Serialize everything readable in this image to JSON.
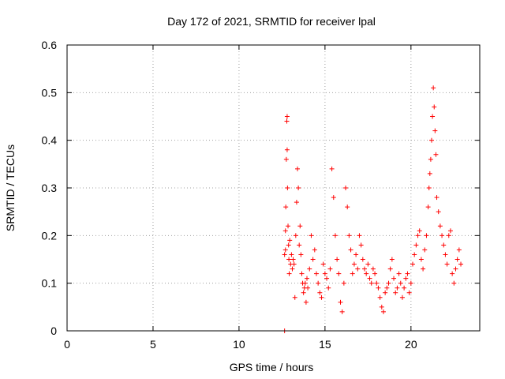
{
  "chart_data": {
    "type": "scatter",
    "title": "Day 172 of 2021, SRMTID for receiver lpal",
    "xlabel": "GPS time / hours",
    "ylabel": "SRMTID / TECUs",
    "xlim": [
      0,
      24
    ],
    "ylim": [
      0,
      0.6
    ],
    "xticks": [
      0,
      5,
      10,
      15,
      20
    ],
    "xtick_labels": [
      "0",
      "5",
      "10",
      "15",
      "20"
    ],
    "yticks": [
      0,
      0.1,
      0.2,
      0.3,
      0.4,
      0.5,
      0.6
    ],
    "ytick_labels": [
      "0",
      "0.1",
      "0.2",
      "0.3",
      "0.4",
      "0.5",
      "0.6"
    ],
    "grid": true,
    "marker": "+",
    "color": "#ff0000",
    "x_range_of_data": [
      12.6,
      22.9
    ],
    "series": [
      {
        "name": "SRMTID",
        "x": [
          12.65,
          12.65,
          12.7,
          12.7,
          12.72,
          12.75,
          12.78,
          12.8,
          12.8,
          12.82,
          12.85,
          12.88,
          12.9,
          12.92,
          12.95,
          13.0,
          13.05,
          13.1,
          13.15,
          13.2,
          13.25,
          13.3,
          13.35,
          13.4,
          13.45,
          13.5,
          13.55,
          13.6,
          13.65,
          13.7,
          13.75,
          13.8,
          13.85,
          13.9,
          13.95,
          14.0,
          14.1,
          14.2,
          14.3,
          14.4,
          14.5,
          14.6,
          14.7,
          14.8,
          14.9,
          15.0,
          15.1,
          15.2,
          15.3,
          15.4,
          15.5,
          15.6,
          15.7,
          15.8,
          15.9,
          16.0,
          16.1,
          16.2,
          16.3,
          16.4,
          16.5,
          16.6,
          16.7,
          16.8,
          16.9,
          17.0,
          17.1,
          17.2,
          17.3,
          17.4,
          17.5,
          17.6,
          17.7,
          17.8,
          17.9,
          18.0,
          18.1,
          18.2,
          18.3,
          18.4,
          18.5,
          18.6,
          18.7,
          18.8,
          18.9,
          19.0,
          19.1,
          19.2,
          19.3,
          19.4,
          19.5,
          19.6,
          19.7,
          19.8,
          19.9,
          20.0,
          20.1,
          20.2,
          20.3,
          20.4,
          20.5,
          20.6,
          20.7,
          20.8,
          20.9,
          21.0,
          21.05,
          21.1,
          21.15,
          21.2,
          21.25,
          21.3,
          21.35,
          21.4,
          21.45,
          21.5,
          21.6,
          21.7,
          21.8,
          21.9,
          22.0,
          22.1,
          22.2,
          22.3,
          22.4,
          22.5,
          22.6,
          22.7,
          22.8,
          22.9
        ],
        "y": [
          0.0,
          0.16,
          0.21,
          0.17,
          0.26,
          0.36,
          0.44,
          0.45,
          0.38,
          0.3,
          0.22,
          0.18,
          0.15,
          0.12,
          0.19,
          0.14,
          0.16,
          0.13,
          0.15,
          0.14,
          0.07,
          0.2,
          0.27,
          0.34,
          0.3,
          0.18,
          0.22,
          0.16,
          0.12,
          0.1,
          0.08,
          0.09,
          0.1,
          0.06,
          0.11,
          0.09,
          0.13,
          0.2,
          0.15,
          0.17,
          0.12,
          0.1,
          0.08,
          0.07,
          0.14,
          0.12,
          0.11,
          0.09,
          0.13,
          0.34,
          0.28,
          0.2,
          0.15,
          0.12,
          0.06,
          0.04,
          0.1,
          0.3,
          0.26,
          0.2,
          0.17,
          0.12,
          0.14,
          0.16,
          0.13,
          0.2,
          0.18,
          0.15,
          0.13,
          0.12,
          0.14,
          0.11,
          0.1,
          0.13,
          0.12,
          0.1,
          0.09,
          0.07,
          0.05,
          0.04,
          0.08,
          0.09,
          0.1,
          0.13,
          0.15,
          0.11,
          0.08,
          0.09,
          0.12,
          0.1,
          0.07,
          0.09,
          0.11,
          0.12,
          0.08,
          0.1,
          0.14,
          0.16,
          0.18,
          0.2,
          0.21,
          0.15,
          0.13,
          0.17,
          0.2,
          0.26,
          0.3,
          0.33,
          0.36,
          0.4,
          0.45,
          0.51,
          0.47,
          0.42,
          0.37,
          0.28,
          0.25,
          0.22,
          0.2,
          0.18,
          0.16,
          0.14,
          0.2,
          0.21,
          0.12,
          0.1,
          0.13,
          0.15,
          0.17,
          0.14
        ]
      }
    ]
  }
}
